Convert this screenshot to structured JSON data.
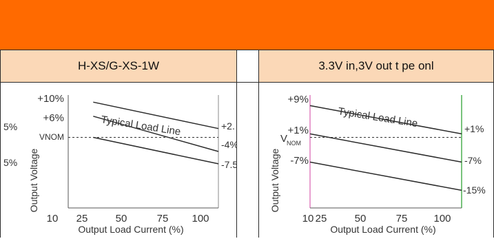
{
  "colors": {
    "banner": "#ff6a00",
    "header_bg": "#fbd8b7",
    "line": "#2a2a2a",
    "grid": "#555555"
  },
  "headers": {
    "left": "H-XS/G-XS-1W",
    "right": "3.3V in,3V out t  pe onl"
  },
  "chart_data": [
    {
      "type": "line",
      "xlabel": "Output Load Current (%)",
      "ylabel": "Output Voltage",
      "x_ticks": [
        "10",
        "25",
        "50",
        "75",
        "100"
      ],
      "y_tick_labels": [
        "+10%",
        "+6%",
        "VNOM"
      ],
      "left_partial_labels": [
        "5%",
        "5%"
      ],
      "annotation": "Typical Load Line",
      "right_labels": [
        "+2.",
        "-4%",
        "-7.5"
      ],
      "series": [
        {
          "values": [
            [
              25,
              10
            ],
            [
              100,
              2.5
            ]
          ]
        },
        {
          "values": [
            [
              25,
              6
            ],
            [
              100,
              -4
            ]
          ]
        },
        {
          "values": [
            [
              25,
              0
            ],
            [
              100,
              -7.5
            ]
          ]
        }
      ],
      "nominal_line": 0,
      "xlim": [
        10,
        100
      ],
      "ylim": [
        -20,
        12
      ]
    },
    {
      "type": "line",
      "xlabel": "Output Load Current (%)",
      "ylabel": "Output Voltage",
      "x_ticks": [
        "10",
        "25",
        "50",
        "75",
        "100"
      ],
      "y_tick_labels": [
        "+9%",
        "+1%",
        "-7%"
      ],
      "vnom_label": "V",
      "vnom_sub": "NOM",
      "annotation": "Typical Load Line",
      "right_labels": [
        "+1%",
        "-7%",
        "-15%"
      ],
      "series": [
        {
          "values": [
            [
              10,
              9
            ],
            [
              100,
              1
            ]
          ]
        },
        {
          "values": [
            [
              10,
              1
            ],
            [
              100,
              -7
            ]
          ]
        },
        {
          "values": [
            [
              10,
              -7
            ],
            [
              100,
              -15
            ]
          ]
        }
      ],
      "nominal_line": 0,
      "xlim": [
        10,
        100
      ],
      "ylim": [
        -20,
        12
      ]
    }
  ]
}
